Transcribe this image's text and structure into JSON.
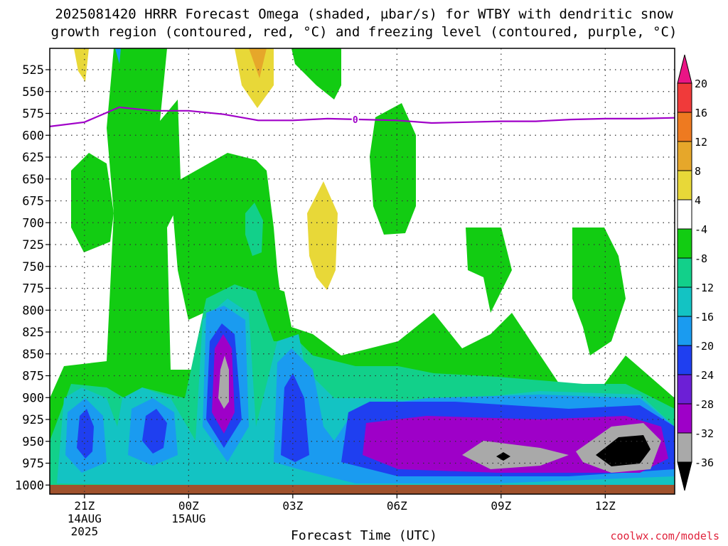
{
  "title_line1": "2025081420 HRRR Forecast Omega (shaded, µbar/s) for WTBY with dendritic snow",
  "title_line2": "growth region (contoured, red, °C) and freezing level (contoured, purple, °C)",
  "xlabel": "Forecast Time (UTC)",
  "credit": "coolwx.com/models",
  "chart_data": {
    "type": "heatmap",
    "ylim": [
      1000,
      500
    ],
    "yticks": [
      525,
      550,
      575,
      600,
      625,
      650,
      675,
      700,
      725,
      750,
      775,
      800,
      825,
      850,
      875,
      900,
      925,
      950,
      975,
      1000
    ],
    "xticks": [
      {
        "hour": 1,
        "label": [
          "21Z",
          "14AUG",
          "2025"
        ]
      },
      {
        "hour": 4,
        "label": [
          "00Z",
          "15AUG"
        ]
      },
      {
        "hour": 7,
        "label": [
          "03Z"
        ]
      },
      {
        "hour": 10,
        "label": [
          "06Z"
        ]
      },
      {
        "hour": 13,
        "label": [
          "09Z"
        ]
      },
      {
        "hour": 16,
        "label": [
          "12Z"
        ]
      }
    ],
    "xrange_hours": [
      0,
      18
    ],
    "grid": true,
    "colorbar": {
      "levels": [
        "-36",
        "-32",
        "-28",
        "-24",
        "-20",
        "-16",
        "-12",
        "-8",
        "-4",
        "4",
        "8",
        "12",
        "16",
        "20"
      ],
      "colors": [
        "#000000",
        "#a9a9a9",
        "#9e00c8",
        "#6c1fd6",
        "#1f3ff0",
        "#1a9bf0",
        "#13c3c3",
        "#12d08a",
        "#12cc12",
        "#ffffff",
        "#e8d838",
        "#e6a72a",
        "#ee7a20",
        "#f03a3a",
        "#ea1585"
      ]
    },
    "freezing_level": {
      "label": "0",
      "color": "#a000c8",
      "x": [
        0,
        1,
        2,
        3,
        4,
        5,
        6,
        7,
        8,
        9,
        10,
        11,
        12,
        13,
        14,
        15,
        16,
        17,
        18
      ],
      "y": [
        590,
        585,
        568,
        572,
        572,
        576,
        583,
        583,
        581,
        582,
        583,
        586,
        585,
        584,
        584,
        582,
        581,
        581,
        580
      ]
    }
  }
}
